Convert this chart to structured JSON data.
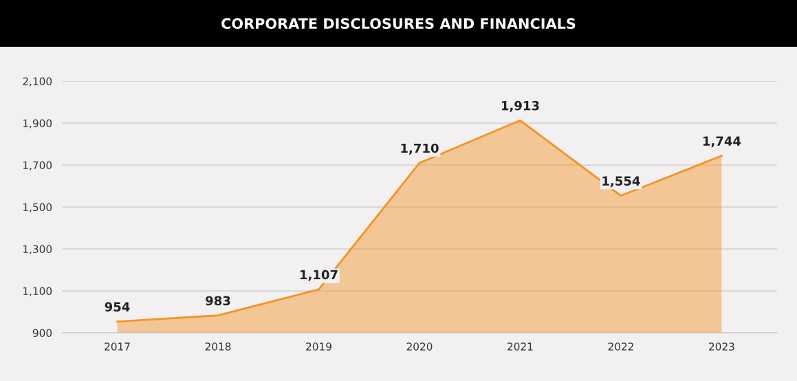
{
  "chart_data": {
    "type": "area",
    "title": "CORPORATE DISCLOSURES AND FINANCIALS",
    "categories": [
      "2017",
      "2018",
      "2019",
      "2020",
      "2021",
      "2022",
      "2023"
    ],
    "values": [
      954,
      983,
      1107,
      1710,
      1913,
      1554,
      1744
    ],
    "value_labels": [
      "954",
      "983",
      "1,107",
      "1,710",
      "1,913",
      "1,554",
      "1,744"
    ],
    "color": "#f39325",
    "ylim": [
      900,
      2100
    ],
    "yticks": [
      900,
      {
        "value": 1100,
        "label": "1,100"
      },
      {
        "value": 1300,
        "label": "1,300"
      },
      {
        "value": 1500,
        "label": "1,500"
      },
      {
        "value": 1700,
        "label": "1,700"
      },
      {
        "value": 1900,
        "label": "1,900"
      },
      {
        "value": 2100,
        "label": "2,100"
      }
    ],
    "grid": "y"
  }
}
